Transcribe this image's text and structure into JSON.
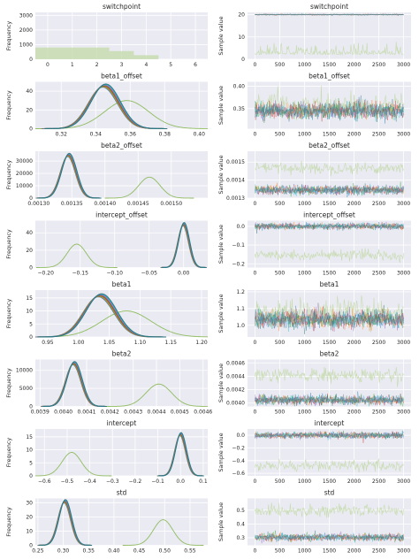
{
  "colors": {
    "axes_bg": "#eaeaf2",
    "grid": "#ffffff",
    "outlier": "#8fbc5f",
    "outlier_trace": "#c3d9a8",
    "chains": [
      "#1f77b4",
      "#ff7f0e",
      "#2ca02c",
      "#d62728",
      "#9467bd",
      "#17becf",
      "#2f6f77"
    ]
  },
  "chart_data": [
    {
      "name": "switchpoint",
      "density": {
        "type": "histogram",
        "title": "switchpoint",
        "xlabel": "",
        "ylabel": "Frequency",
        "xlim": [
          -0.5,
          6.5
        ],
        "ylim": [
          0,
          3200
        ],
        "xticks": [
          0,
          1,
          2,
          3,
          4,
          5,
          6
        ],
        "xtick_labels": [
          "0",
          "1",
          "2",
          "3",
          "4",
          "5",
          "6"
        ],
        "yticks": [
          0,
          1000,
          2000,
          3000
        ],
        "ytick_labels": [
          "0",
          "1000",
          "2000",
          "3000"
        ],
        "bars": [
          {
            "x0": -0.5,
            "x1": 2.5,
            "value": 800
          },
          {
            "x0": 2.5,
            "x1": 3.5,
            "value": 560
          },
          {
            "x0": 3.5,
            "x1": 4.5,
            "value": 280
          }
        ]
      },
      "trace": {
        "title": "switchpoint",
        "xlabel": "",
        "ylabel": "Sample value",
        "xlim": [
          -150,
          3150
        ],
        "ylim": [
          0,
          21
        ],
        "xticks": [
          0,
          500,
          1000,
          1500,
          2000,
          2500,
          3000
        ],
        "xtick_labels": [
          "0",
          "500",
          "1000",
          "1500",
          "2000",
          "2500",
          "3000"
        ],
        "yticks": [
          0,
          10,
          20
        ],
        "ytick_labels": [
          "0",
          "10",
          "20"
        ],
        "chain_level": 20,
        "chain_spread": 0.15,
        "outlier_center": 2,
        "outlier_spread": 2.2
      }
    },
    {
      "name": "beta1_offset",
      "density": {
        "type": "kde",
        "title": "beta1_offset",
        "xlabel": "",
        "ylabel": "Frequency",
        "xlim": [
          0.305,
          0.405
        ],
        "ylim": [
          0,
          50
        ],
        "xticks": [
          0.32,
          0.34,
          0.36,
          0.38,
          0.4
        ],
        "xtick_labels": [
          "0.32",
          "0.34",
          "0.36",
          "0.38",
          "0.40"
        ],
        "yticks": [
          0,
          20,
          40
        ],
        "ytick_labels": [
          "0",
          "20",
          "40"
        ],
        "chains_mean": 0.345,
        "chains_sd": 0.0085,
        "chains_peak": 46,
        "outlier_mean": 0.358,
        "outlier_sd": 0.0128,
        "outlier_peak": 30
      },
      "trace": {
        "title": "beta1_offset",
        "xlabel": "",
        "ylabel": "Sample value",
        "xlim": [
          -150,
          3150
        ],
        "ylim": [
          0.305,
          0.41
        ],
        "xticks": [
          0,
          500,
          1000,
          1500,
          2000,
          2500,
          3000
        ],
        "xtick_labels": [
          "0",
          "500",
          "1000",
          "1500",
          "2000",
          "2500",
          "3000"
        ],
        "yticks": [
          0.35,
          0.4
        ],
        "ytick_labels": [
          "0.35",
          "0.40"
        ],
        "chain_level": 0.345,
        "chain_spread": 0.009,
        "outlier_center": 0.358,
        "outlier_spread": 0.013
      }
    },
    {
      "name": "beta2_offset",
      "density": {
        "type": "kde",
        "title": "beta2_offset",
        "xlabel": "",
        "ylabel": "Frequency",
        "xlim": [
          0.001295,
          0.001555
        ],
        "ylim": [
          0,
          38000
        ],
        "xticks": [
          0.0013,
          0.00135,
          0.0014,
          0.00145,
          0.0015
        ],
        "xtick_labels": [
          "0.00130",
          "0.00135",
          "0.00140",
          "0.00145",
          "0.00150"
        ],
        "yticks": [
          0,
          10000,
          20000,
          30000
        ],
        "ytick_labels": [
          "0",
          "10000",
          "20000",
          "30000"
        ],
        "chains_mean": 0.001345,
        "chains_sd": 1.15e-05,
        "chains_peak": 35000,
        "outlier_mean": 0.001467,
        "outlier_sd": 1.6e-05,
        "outlier_peak": 17000
      },
      "trace": {
        "title": "beta2_offset",
        "xlabel": "",
        "ylabel": "Sample value",
        "xlim": [
          -150,
          3150
        ],
        "ylim": [
          0.0013,
          0.00156
        ],
        "xticks": [
          0,
          500,
          1000,
          1500,
          2000,
          2500,
          3000
        ],
        "xtick_labels": [
          "0",
          "500",
          "1000",
          "1500",
          "2000",
          "2500",
          "3000"
        ],
        "yticks": [
          0.0013,
          0.0014,
          0.0015
        ],
        "ytick_labels": [
          "0.0013",
          "0.0014",
          "0.0015"
        ],
        "chain_level": 0.001345,
        "chain_spread": 1.2e-05,
        "outlier_center": 0.001467,
        "outlier_spread": 1.6e-05
      }
    },
    {
      "name": "intercept_offset",
      "density": {
        "type": "kde",
        "title": "intercept_offset",
        "xlabel": "",
        "ylabel": "Frequency",
        "xlim": [
          -0.215,
          0.035
        ],
        "ylim": [
          0,
          54
        ],
        "xticks": [
          -0.2,
          -0.15,
          -0.1,
          -0.05,
          0
        ],
        "xtick_labels": [
          "−0.20",
          "−0.15",
          "−0.10",
          "−0.05",
          "0.00"
        ],
        "yticks": [
          0,
          20,
          40
        ],
        "ytick_labels": [
          "0",
          "20",
          "40"
        ],
        "chains_mean": 0.0,
        "chains_sd": 0.0078,
        "chains_peak": 50,
        "outlier_mean": -0.155,
        "outlier_sd": 0.014,
        "outlier_peak": 27
      },
      "trace": {
        "title": "intercept_offset",
        "xlabel": "",
        "ylabel": "Sample value",
        "xlim": [
          -150,
          3150
        ],
        "ylim": [
          -0.22,
          0.03
        ],
        "xticks": [
          0,
          500,
          1000,
          1500,
          2000,
          2500,
          3000
        ],
        "xtick_labels": [
          "0",
          "500",
          "1000",
          "1500",
          "2000",
          "2500",
          "3000"
        ],
        "yticks": [
          -0.2,
          -0.1,
          0.0
        ],
        "ytick_labels": [
          "−0.2",
          "−0.1",
          "0.0"
        ],
        "chain_level": 0.0,
        "chain_spread": 0.008,
        "outlier_center": -0.155,
        "outlier_spread": 0.014
      }
    },
    {
      "name": "beta1",
      "density": {
        "type": "kde",
        "title": "beta1",
        "xlabel": "",
        "ylabel": "Frequency",
        "xlim": [
          0.93,
          1.21
        ],
        "ylim": [
          0,
          18
        ],
        "xticks": [
          0.95,
          1.0,
          1.05,
          1.1,
          1.15,
          1.2
        ],
        "xtick_labels": [
          "0.95",
          "1.00",
          "1.05",
          "1.10",
          "1.15",
          "1.20"
        ],
        "yticks": [
          0,
          5,
          10,
          15
        ],
        "ytick_labels": [
          "0",
          "5",
          "10",
          "15"
        ],
        "chains_mean": 1.035,
        "chains_sd": 0.025,
        "chains_peak": 16,
        "outlier_mean": 1.078,
        "outlier_sd": 0.04,
        "outlier_peak": 10
      },
      "trace": {
        "title": "beta1",
        "xlabel": "",
        "ylabel": "Sample value",
        "xlim": [
          -150,
          3150
        ],
        "ylim": [
          0.93,
          1.21
        ],
        "xticks": [
          0,
          500,
          1000,
          1500,
          2000,
          2500,
          3000
        ],
        "xtick_labels": [
          "0",
          "500",
          "1000",
          "1500",
          "2000",
          "2500",
          "3000"
        ],
        "yticks": [
          1.0,
          1.1,
          1.2
        ],
        "ytick_labels": [
          "1.0",
          "1.1",
          "1.2"
        ],
        "chain_level": 1.035,
        "chain_spread": 0.026,
        "outlier_center": 1.078,
        "outlier_spread": 0.04
      }
    },
    {
      "name": "beta2",
      "density": {
        "type": "kde",
        "title": "beta2",
        "xlabel": "",
        "ylabel": "Frequency",
        "xlim": [
          0.00388,
          0.00462
        ],
        "ylim": [
          0,
          13000
        ],
        "xticks": [
          0.0039,
          0.004,
          0.0041,
          0.0042,
          0.0043,
          0.0044,
          0.0045,
          0.0046
        ],
        "xtick_labels": [
          "0.0039",
          "0.0040",
          "0.0041",
          "0.0042",
          "0.0043",
          "0.0044",
          "0.0045",
          "0.0046"
        ],
        "yticks": [
          0,
          5000,
          10000
        ],
        "ytick_labels": [
          "0",
          "5000",
          "10000"
        ],
        "chains_mean": 0.004045,
        "chains_sd": 3.3e-05,
        "chains_peak": 12000,
        "outlier_mean": 0.00441,
        "outlier_sd": 5.5e-05,
        "outlier_peak": 6200
      },
      "trace": {
        "title": "beta2",
        "xlabel": "",
        "ylabel": "Sample value",
        "xlim": [
          -150,
          3150
        ],
        "ylim": [
          0.00395,
          0.00465
        ],
        "xticks": [
          0,
          500,
          1000,
          1500,
          2000,
          2500,
          3000
        ],
        "xtick_labels": [
          "0",
          "500",
          "1000",
          "1500",
          "2000",
          "2500",
          "3000"
        ],
        "yticks": [
          0.004,
          0.0042,
          0.0044,
          0.0046
        ],
        "ytick_labels": [
          "0.0040",
          "0.0042",
          "0.0044",
          "0.0046"
        ],
        "chain_level": 0.004045,
        "chain_spread": 3.4e-05,
        "outlier_center": 0.00441,
        "outlier_spread": 5.5e-05
      }
    },
    {
      "name": "intercept",
      "density": {
        "type": "kde",
        "title": "intercept",
        "xlabel": "",
        "ylabel": "Frequency",
        "xlim": [
          -0.64,
          0.12
        ],
        "ylim": [
          0,
          18
        ],
        "xticks": [
          -0.6,
          -0.5,
          -0.4,
          -0.3,
          -0.2,
          -0.1,
          0.0,
          0.1
        ],
        "xtick_labels": [
          "−0.6",
          "−0.5",
          "−0.4",
          "−0.3",
          "−0.2",
          "−0.1",
          "0.0",
          "0.1"
        ],
        "yticks": [
          0,
          5,
          10,
          15
        ],
        "ytick_labels": [
          "0",
          "5",
          "10",
          "15"
        ],
        "chains_mean": 0.0,
        "chains_sd": 0.024,
        "chains_peak": 16,
        "outlier_mean": -0.48,
        "outlier_sd": 0.042,
        "outlier_peak": 9
      },
      "trace": {
        "title": "intercept",
        "xlabel": "",
        "ylabel": "Sample value",
        "xlim": [
          -150,
          3150
        ],
        "ylim": [
          -0.64,
          0.1
        ],
        "xticks": [
          0,
          500,
          1000,
          1500,
          2000,
          2500,
          3000
        ],
        "xtick_labels": [
          "0",
          "500",
          "1000",
          "1500",
          "2000",
          "2500",
          "3000"
        ],
        "yticks": [
          -0.6,
          -0.4,
          -0.2,
          0.0
        ],
        "ytick_labels": [
          "−0.6",
          "−0.4",
          "−0.2",
          "0.0"
        ],
        "chain_level": 0.0,
        "chain_spread": 0.025,
        "outlier_center": -0.48,
        "outlier_spread": 0.042
      }
    },
    {
      "name": "std",
      "density": {
        "type": "kde",
        "title": "std",
        "xlabel": "",
        "ylabel": "Frequency",
        "xlim": [
          0.245,
          0.585
        ],
        "ylim": [
          0,
          33
        ],
        "xticks": [
          0.25,
          0.3,
          0.35,
          0.4,
          0.45,
          0.5,
          0.55
        ],
        "xtick_labels": [
          "0.25",
          "0.30",
          "0.35",
          "0.40",
          "0.45",
          "0.50",
          "0.55"
        ],
        "yticks": [
          0,
          10,
          20,
          30
        ],
        "ytick_labels": [
          "0",
          "10",
          "20",
          "30"
        ],
        "chains_mean": 0.303,
        "chains_sd": 0.0125,
        "chains_peak": 31,
        "outlier_mean": 0.497,
        "outlier_sd": 0.019,
        "outlier_peak": 18
      },
      "trace": {
        "title": "std",
        "xlabel": "",
        "ylabel": "Sample value",
        "xlim": [
          -150,
          3150
        ],
        "ylim": [
          0.245,
          0.585
        ],
        "xticks": [
          0,
          500,
          1000,
          1500,
          2000,
          2500,
          3000
        ],
        "xtick_labels": [
          "0",
          "500",
          "1000",
          "1500",
          "2000",
          "2500",
          "3000"
        ],
        "yticks": [
          0.3,
          0.4,
          0.5
        ],
        "ytick_labels": [
          "0.3",
          "0.4",
          "0.5"
        ],
        "chain_level": 0.303,
        "chain_spread": 0.013,
        "outlier_center": 0.497,
        "outlier_spread": 0.02
      }
    }
  ]
}
